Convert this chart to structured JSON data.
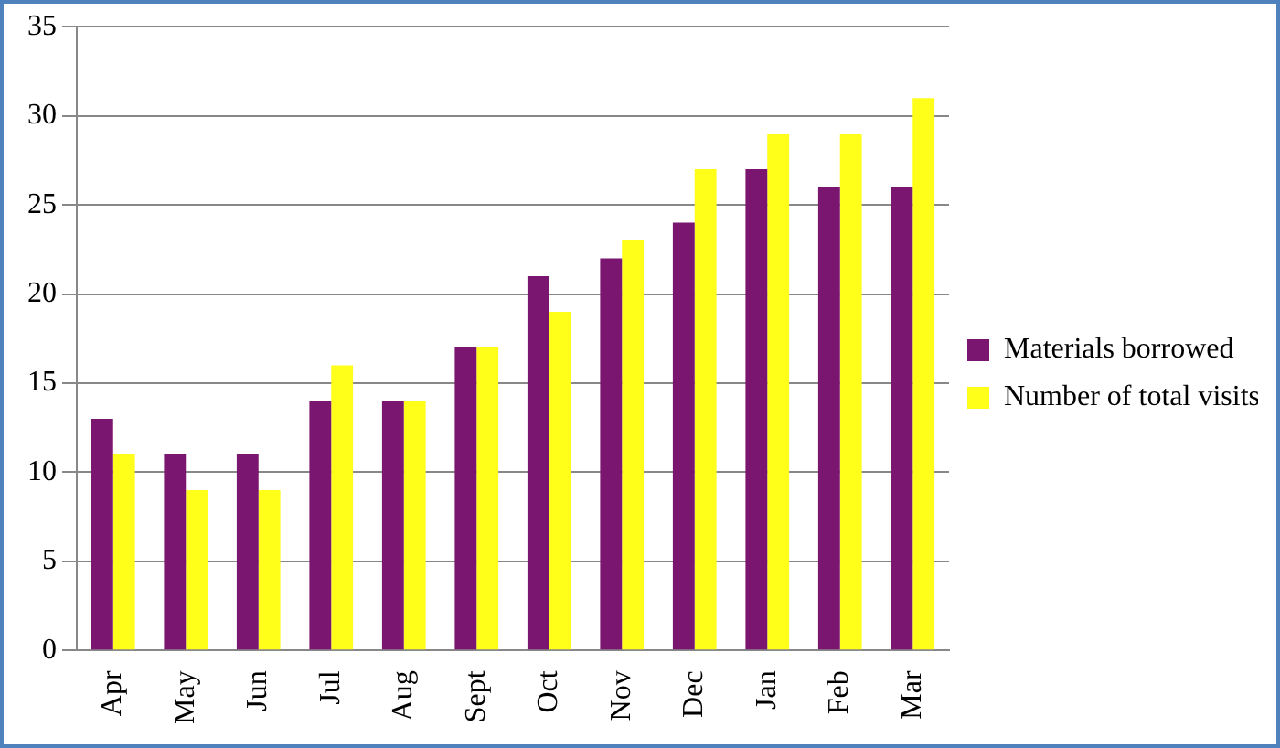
{
  "chart_data": {
    "type": "bar",
    "categories": [
      "Apr",
      "May",
      "Jun",
      "Jul",
      "Aug",
      "Sept",
      "Oct",
      "Nov",
      "Dec",
      "Jan",
      "Feb",
      "Mar"
    ],
    "series": [
      {
        "name": "Materials borrowed",
        "color": "#7b1670",
        "values": [
          13,
          11,
          11,
          14,
          14,
          17,
          21,
          22,
          24,
          27,
          26,
          26
        ]
      },
      {
        "name": "Number of total visits",
        "color": "#ffff1a",
        "values": [
          11,
          9,
          9,
          16,
          14,
          17,
          19,
          23,
          27,
          29,
          29,
          31
        ]
      }
    ],
    "ylim": [
      0,
      35
    ],
    "yticks": [
      0,
      5,
      10,
      15,
      20,
      25,
      30,
      35
    ],
    "grid": "y",
    "legend": "right"
  }
}
